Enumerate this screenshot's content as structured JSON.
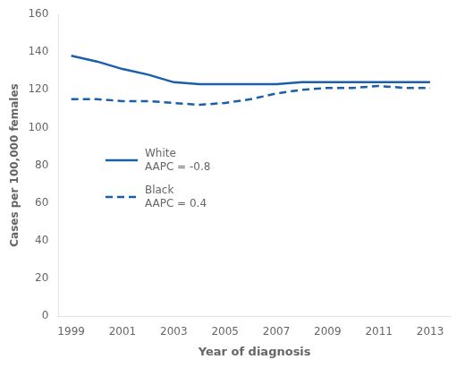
{
  "chart_data": {
    "type": "line",
    "xlabel": "Year of diagnosis",
    "ylabel": "Cases per 100,000 females",
    "x": [
      1999,
      2000,
      2001,
      2002,
      2003,
      2004,
      2005,
      2006,
      2007,
      2008,
      2009,
      2010,
      2011,
      2012,
      2013
    ],
    "series": [
      {
        "name": "White\nAAPC = -0.8",
        "color": "#1a5fa8",
        "line_style": "solid",
        "values": [
          138,
          135,
          131,
          128,
          124,
          123,
          123,
          123,
          123,
          124,
          124,
          124,
          124,
          124,
          124
        ]
      },
      {
        "name": "Black\nAAPC = 0.4",
        "color": "#1a5fa8",
        "line_style": "dashed",
        "values": [
          115,
          115,
          114,
          114,
          113,
          112,
          113,
          115,
          118,
          120,
          121,
          121,
          122,
          121,
          121
        ]
      }
    ],
    "xlim": [
      1998.5,
      2013.8
    ],
    "xticks": [
      1999,
      2001,
      2003,
      2005,
      2007,
      2009,
      2011,
      2013
    ],
    "ylim": [
      0,
      160
    ],
    "yticks": [
      0,
      20,
      40,
      60,
      80,
      100,
      120,
      140,
      160
    ],
    "grid": false,
    "legend": "center left"
  }
}
